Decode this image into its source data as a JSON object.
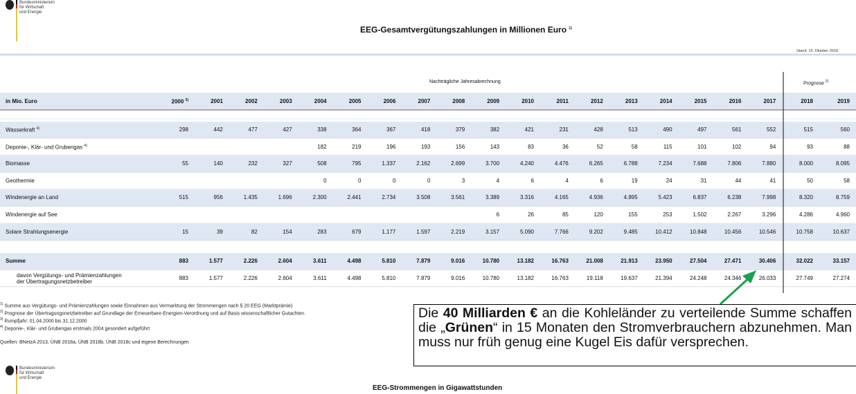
{
  "header": {
    "ministry": [
      "Bundesministerium",
      "für Wirtschaft",
      "und Energie"
    ],
    "title": "EEG-Gesamtvergütungszahlungen in Millionen Euro",
    "title_note": "1)",
    "stand": "Stand: 15. Oktober 2018"
  },
  "table": {
    "shade_color": "#dfe7f3",
    "group_headers": [
      {
        "label": "Nachträgliche Jahresabrechnung"
      },
      {
        "label": "Prognose",
        "note": "2)"
      }
    ],
    "corner": "in Mio. Euro",
    "columns": [
      {
        "label": "2000",
        "note": "3)"
      },
      {
        "label": "2001"
      },
      {
        "label": "2002"
      },
      {
        "label": "2003"
      },
      {
        "label": "2004"
      },
      {
        "label": "2005"
      },
      {
        "label": "2006"
      },
      {
        "label": "2007"
      },
      {
        "label": "2008"
      },
      {
        "label": "2009"
      },
      {
        "label": "2010"
      },
      {
        "label": "2011"
      },
      {
        "label": "2012"
      },
      {
        "label": "2013"
      },
      {
        "label": "2014"
      },
      {
        "label": "2015"
      },
      {
        "label": "2016"
      },
      {
        "label": "2017"
      },
      {
        "label": "2018"
      },
      {
        "label": "2019"
      }
    ],
    "rows": [
      {
        "label": "Wasserkraft",
        "note": "4)",
        "shaded": true,
        "values": [
          "298",
          "442",
          "477",
          "427",
          "338",
          "364",
          "367",
          "418",
          "379",
          "382",
          "421",
          "231",
          "428",
          "513",
          "490",
          "497",
          "561",
          "552",
          "515",
          "560"
        ]
      },
      {
        "label": "Deponie-, Klär- und Grubengas",
        "note": "4)",
        "values": [
          null,
          null,
          null,
          null,
          "182",
          "219",
          "196",
          "193",
          "156",
          "143",
          "83",
          "36",
          "52",
          "58",
          "115",
          "101",
          "102",
          "94",
          "93",
          "88"
        ]
      },
      {
        "label": "Biomasse",
        "shaded": true,
        "values": [
          "55",
          "140",
          "232",
          "327",
          "508",
          "795",
          "1.337",
          "2.162",
          "2.699",
          "3.700",
          "4.240",
          "4.476",
          "6.265",
          "6.788",
          "7.234",
          "7.688",
          "7.806",
          "7.880",
          "8.000",
          "8.095"
        ]
      },
      {
        "label": "Geothermie",
        "values": [
          null,
          null,
          null,
          null,
          "0",
          "0",
          "0",
          "0",
          "3",
          "4",
          "6",
          "4",
          "6",
          "19",
          "24",
          "31",
          "44",
          "41",
          "50",
          "58"
        ]
      },
      {
        "label": "Windenergie an Land",
        "shaded": true,
        "values": [
          "515",
          "956",
          "1.435",
          "1.696",
          "2.300",
          "2.441",
          "2.734",
          "3.508",
          "3.561",
          "3.389",
          "3.316",
          "4.165",
          "4.936",
          "4.895",
          "5.423",
          "6.837",
          "6.238",
          "7.998",
          "8.320",
          "8.759"
        ]
      },
      {
        "label": "Windenergie auf See",
        "values": [
          null,
          null,
          null,
          null,
          null,
          null,
          null,
          null,
          null,
          "6",
          "26",
          "85",
          "120",
          "155",
          "253",
          "1.502",
          "2.267",
          "3.296",
          "4.286",
          "4.960"
        ]
      },
      {
        "label": "Solare Strahlungsenergie",
        "shaded": true,
        "values": [
          "15",
          "39",
          "82",
          "154",
          "283",
          "679",
          "1.177",
          "1.597",
          "2.219",
          "3.157",
          "5.090",
          "7.766",
          "9.202",
          "9.485",
          "10.412",
          "10.848",
          "10.456",
          "10.546",
          "10.758",
          "10.637"
        ]
      },
      {
        "label": "Summe",
        "shaded": true,
        "bold": true,
        "values": [
          "883",
          "1.577",
          "2.226",
          "2.604",
          "3.611",
          "4.498",
          "5.810",
          "7.879",
          "9.016",
          "10.780",
          "13.182",
          "16.763",
          "21.008",
          "21.913",
          "23.950",
          "27.504",
          "27.471",
          "30.406",
          "32.022",
          "33.157"
        ]
      },
      {
        "label": [
          "davon Vergütungs- und Prämienzahlungen",
          "der Übertragungsnetzbetreiber"
        ],
        "values": [
          "883",
          "1.577",
          "2.226",
          "2.604",
          "3.611",
          "4.498",
          "5.810",
          "7.879",
          "9.016",
          "10.780",
          "13.182",
          "16.763",
          "19.118",
          "19.637",
          "21.394",
          "24.248",
          "24.346",
          "26.033",
          "27.749",
          "27.274"
        ]
      }
    ]
  },
  "footnotes": [
    {
      "marker": "1)",
      "text": "Summe aus Vergütungs- und Prämienzahlungen sowie Einnahmen aus Vermarktung der Strommengen nach § 20 EEG (Marktprämie)"
    },
    {
      "marker": "2)",
      "text": "Prognose der Übertragungsnetzbetreiber auf Grundlage der Erneuerbare-Energien-Verordnung und auf Basis wissenschaftlicher Gutachten."
    },
    {
      "marker": "3)",
      "text": "Rumpfjahr: 01.04.2000 bis 31.12.2000"
    },
    {
      "marker": "4)",
      "text": "Deponie-, Klär- und Grubengas erstmals 2004 gesondert aufgeführt"
    }
  ],
  "sources": "Quellen: BNetzA 2013, ÜNB 2018a, ÜNB 2018b, ÜNB 2018c und eigene Berechnungen",
  "annotation": {
    "segments": [
      {
        "text": "Die "
      },
      {
        "text": "40 Milliarden €",
        "bold": true
      },
      {
        "text": " an die Kohleländer zu verteilende Summe schaffen die „"
      },
      {
        "text": "Grünen",
        "bold": true
      },
      {
        "text": "“ in 15 Monaten den Stromverbrauchern abzunehmen. Man muss nur früh genug eine Kugel Eis dafür versprechen."
      }
    ]
  },
  "next_page": {
    "ministry": [
      "Bundesministerium",
      "für Wirtschaft",
      "und Energie"
    ],
    "title": "EEG-Strommengen in Gigawattstunden"
  }
}
